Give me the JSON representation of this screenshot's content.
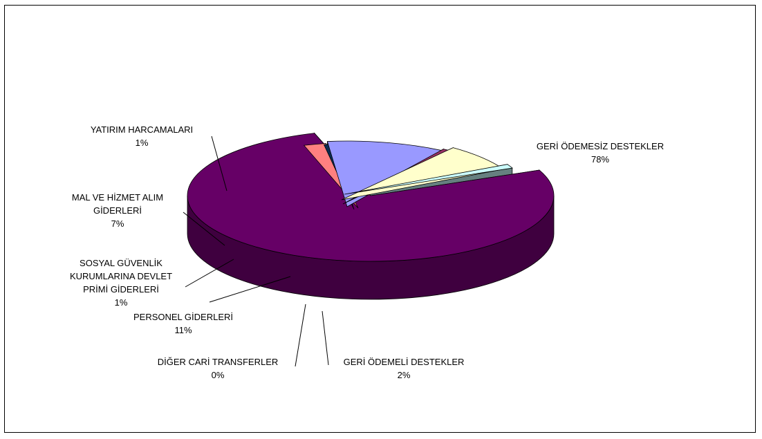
{
  "chart_data": {
    "type": "pie",
    "style": "3d-exploded",
    "title": "",
    "slices": [
      {
        "id": "geri-odemesiz-destekler",
        "label_lines": [
          "GERİ ÖDEMESİZ DESTEKLER"
        ],
        "percent_label": "78%",
        "value": 78,
        "color": "#660066"
      },
      {
        "id": "geri-odemeli-destekler",
        "label_lines": [
          "GERİ ÖDEMELİ  DESTEKLER"
        ],
        "percent_label": "2%",
        "value": 2,
        "color": "#ff8080"
      },
      {
        "id": "diger-cari-transferler",
        "label_lines": [
          "DİĞER CARİ TRANSFERLER"
        ],
        "percent_label": "0%",
        "value": 0,
        "color": "#0b2c52"
      },
      {
        "id": "personel-giderleri",
        "label_lines": [
          "PERSONEL GİDERLERİ"
        ],
        "percent_label": "11%",
        "value": 11,
        "color": "#9999ff"
      },
      {
        "id": "sosyal-guvenlik",
        "label_lines": [
          "SOSYAL GÜVENLİK",
          "KURUMLARINA DEVLET",
          "PRİMİ GİDERLERİ"
        ],
        "percent_label": "1%",
        "value": 1,
        "color": "#993366"
      },
      {
        "id": "mal-ve-hizmet",
        "label_lines": [
          "MAL VE HİZMET ALIM",
          "GİDERLERİ"
        ],
        "percent_label": "7%",
        "value": 7,
        "color": "#ffffcc"
      },
      {
        "id": "yatirim-harcamalari",
        "label_lines": [
          "YATIRIM HARCAMALARI"
        ],
        "percent_label": "1%",
        "value": 1,
        "color": "#ccffff"
      }
    ]
  }
}
